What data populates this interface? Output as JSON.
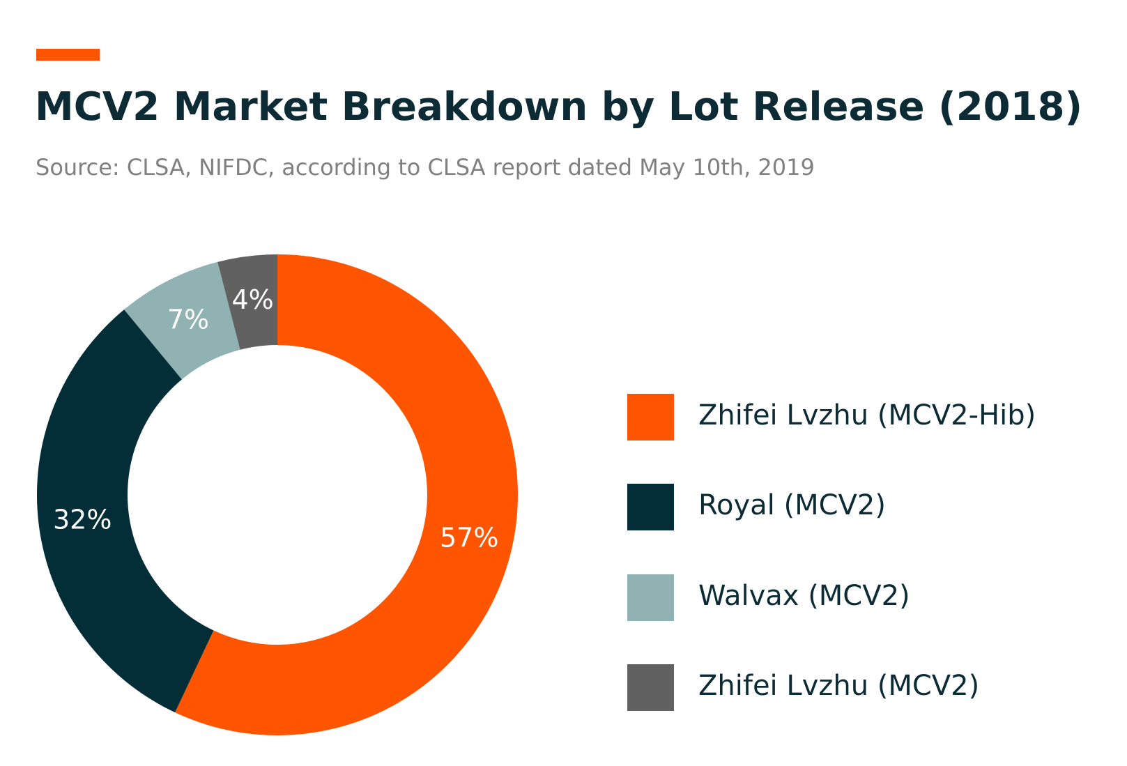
{
  "accent_color": "#ff5500",
  "header": {
    "title": "MCV2 Market Breakdown by Lot Release (2018)",
    "subtitle": "Source: CLSA, NIFDC, according to CLSA report dated May 10th, 2019"
  },
  "chart_data": {
    "type": "pie",
    "variant": "donut",
    "title": "MCV2 Market Breakdown by Lot Release (2018)",
    "subtitle": "Source: CLSA, NIFDC, according to CLSA report dated May 10th, 2019",
    "unit": "%",
    "legend_position": "right",
    "slices": [
      {
        "label": "Zhifei Lvzhu (MCV2-Hib)",
        "value": 57,
        "data_label": "57%",
        "color": "#ff5500"
      },
      {
        "label": "Royal (MCV2)",
        "value": 32,
        "data_label": "32%",
        "color": "#032e37"
      },
      {
        "label": "Walvax (MCV2)",
        "value": 7,
        "data_label": "7%",
        "color": "#90b2b2"
      },
      {
        "label": "Zhifei Lvzhu (MCV2)",
        "value": 4,
        "data_label": "4%",
        "color": "#616161"
      }
    ]
  }
}
